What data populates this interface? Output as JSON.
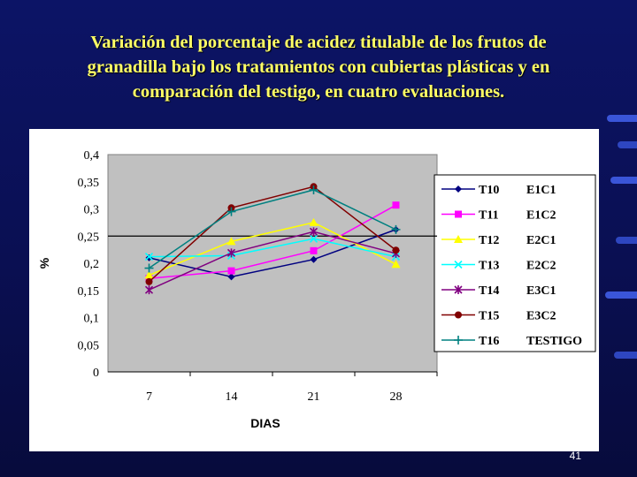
{
  "slide": {
    "title_lines": [
      "Variación del porcentaje de acidez titulable de los frutos de",
      "granadilla bajo los tratamientos con cubiertas plásticas y en",
      "comparación del testigo, en cuatro evaluaciones."
    ],
    "page_number": "41",
    "title_color": "#ffff66",
    "background_color": "#0a0f52"
  },
  "chart_data": {
    "type": "line",
    "xlabel": "DIAS",
    "ylabel": "%",
    "categories": [
      "7",
      "14",
      "21",
      "28"
    ],
    "ylim": [
      0,
      0.4
    ],
    "yticks": [
      "0",
      "0,05",
      "0,1",
      "0,15",
      "0,2",
      "0,25",
      "0,3",
      "0,35",
      "0,4"
    ],
    "plot_background": "#c0c0c0",
    "grid": false,
    "reference_line": 0.25,
    "legend_position": "right",
    "series": [
      {
        "name": "T10",
        "label": "E1C1",
        "color": "#000080",
        "marker": "diamond",
        "values": [
          0.21,
          0.175,
          0.207,
          0.262
        ]
      },
      {
        "name": "T11",
        "label": "E1C2",
        "color": "#ff00ff",
        "marker": "square",
        "values": [
          0.172,
          0.186,
          0.223,
          0.307
        ]
      },
      {
        "name": "T12",
        "label": "E2C1",
        "color": "#ffff00",
        "marker": "triangle",
        "values": [
          0.178,
          0.24,
          0.275,
          0.198
        ]
      },
      {
        "name": "T13",
        "label": "E2C2",
        "color": "#00ffff",
        "marker": "x",
        "values": [
          0.212,
          0.214,
          0.245,
          0.212
        ]
      },
      {
        "name": "T14",
        "label": "E3C1",
        "color": "#800080",
        "marker": "star",
        "values": [
          0.151,
          0.219,
          0.258,
          0.218
        ]
      },
      {
        "name": "T15",
        "label": "E3C2",
        "color": "#800000",
        "marker": "circle",
        "values": [
          0.166,
          0.302,
          0.341,
          0.224
        ]
      },
      {
        "name": "T16",
        "label": "TESTIGO",
        "color": "#008080",
        "marker": "plus",
        "values": [
          0.191,
          0.295,
          0.335,
          0.262
        ]
      }
    ]
  }
}
